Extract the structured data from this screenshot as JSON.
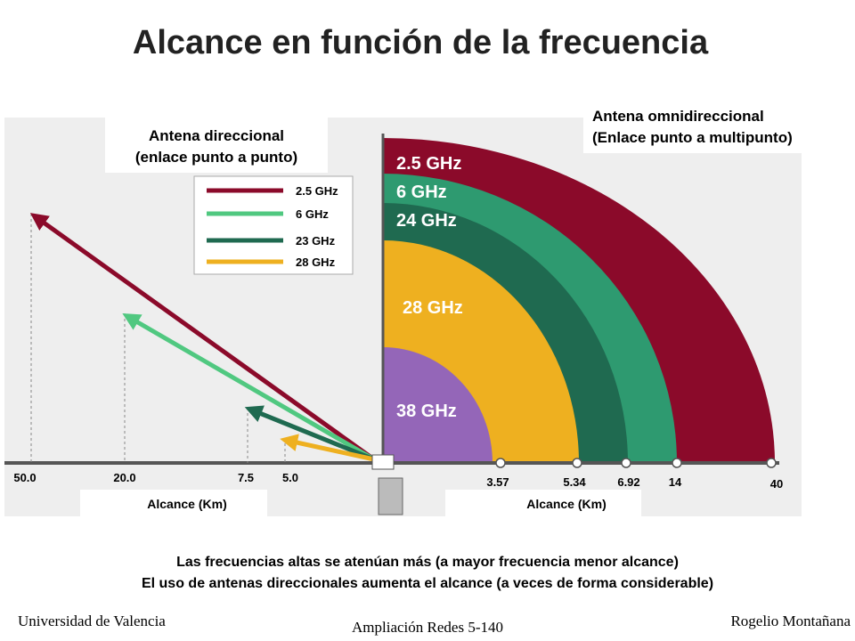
{
  "header": {
    "title": "Alcance en función de la frecuencia"
  },
  "left_panel": {
    "title_lines": [
      "Antena direccional",
      "(enlace punto a punto)"
    ],
    "legend": [
      "2.5 GHz",
      "6 GHz",
      "23 GHz",
      "28 GHz"
    ],
    "axis_ticks": [
      "50.0",
      "20.0",
      "7.5",
      "5.0"
    ],
    "axis_label": "Alcance (Km)"
  },
  "right_panel": {
    "title_lines": [
      "Antena omnidireccional",
      "(Enlace punto a multipunto)"
    ],
    "arc_labels": [
      "2.5 GHz",
      "6 GHz",
      "24 GHz",
      "28 GHz",
      "38 GHz"
    ],
    "axis_ticks": [
      "3.57",
      "5.34",
      "6.92",
      "14",
      "40"
    ],
    "axis_label": "Alcance (Km)"
  },
  "notes": [
    "Las frecuencias altas se atenúan más (a mayor frecuencia menor alcance)",
    "El uso de antenas direccionales aumenta el alcance (a veces de forma considerable)"
  ],
  "footer": {
    "left": "Universidad de Valencia",
    "center": "Ampliación Redes 5-140",
    "right": "Rogelio Montañana"
  }
}
